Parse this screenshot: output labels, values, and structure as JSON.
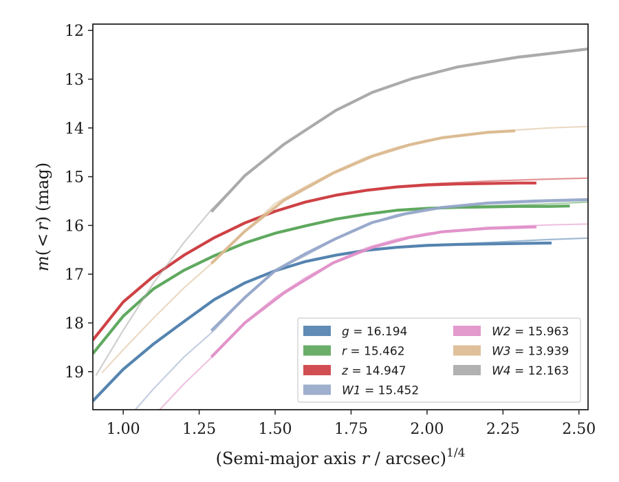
{
  "chart_data": {
    "type": "line",
    "xlabel": {
      "prefix": "(Semi-major axis ",
      "italic": "r",
      "suffix": " / arcsec)",
      "superscript": "1/4"
    },
    "ylabel": {
      "italic_m": "m",
      "open": "(",
      "lt": "<",
      "italic_r": "r",
      "close": ")",
      "unit": "(mag)"
    },
    "xlim": [
      0.9,
      2.53
    ],
    "ylim": [
      19.78,
      11.87
    ],
    "y_inverted": true,
    "xticks": [
      1.0,
      1.25,
      1.5,
      1.75,
      2.0,
      2.25,
      2.5
    ],
    "xtick_labels": [
      "1.00",
      "1.25",
      "1.50",
      "1.75",
      "2.00",
      "2.25",
      "2.50"
    ],
    "yticks": [
      12,
      13,
      14,
      15,
      16,
      17,
      18,
      19
    ],
    "ytick_labels": [
      "12",
      "13",
      "14",
      "15",
      "16",
      "17",
      "18",
      "19"
    ],
    "grid": false,
    "legend_position": "lower-right",
    "series": [
      {
        "band": "g",
        "value": "16.194",
        "color": "#4f7fad",
        "model_x": [
          0.9,
          1.0,
          1.1,
          1.2,
          1.3,
          1.4,
          1.5,
          1.6,
          1.7,
          1.8,
          1.9,
          2.0,
          2.2,
          2.4,
          2.53
        ],
        "model_y": [
          19.62,
          18.97,
          18.45,
          17.98,
          17.52,
          17.17,
          16.93,
          16.75,
          16.62,
          16.52,
          16.45,
          16.41,
          16.35,
          16.29,
          16.26
        ],
        "data_x": [
          0.9,
          1.0,
          1.1,
          1.2,
          1.3,
          1.4,
          1.5,
          1.6,
          1.7,
          1.8,
          1.9,
          2.0,
          2.1,
          2.2,
          2.3,
          2.41
        ],
        "data_y": [
          19.6,
          18.95,
          18.43,
          17.97,
          17.52,
          17.18,
          16.93,
          16.74,
          16.61,
          16.51,
          16.45,
          16.41,
          16.39,
          16.38,
          16.37,
          16.36
        ]
      },
      {
        "band": "r",
        "value": "15.462",
        "color": "#5aa55a",
        "model_x": [
          0.9,
          1.0,
          1.1,
          1.2,
          1.3,
          1.4,
          1.5,
          1.6,
          1.7,
          1.8,
          1.9,
          2.0,
          2.2,
          2.4,
          2.53
        ],
        "model_y": [
          18.63,
          17.88,
          17.3,
          16.93,
          16.63,
          16.36,
          16.17,
          16.01,
          15.86,
          15.76,
          15.69,
          15.64,
          15.6,
          15.56,
          15.52
        ],
        "data_x": [
          0.9,
          1.0,
          1.1,
          1.2,
          1.3,
          1.4,
          1.5,
          1.6,
          1.7,
          1.8,
          1.9,
          2.0,
          2.1,
          2.2,
          2.3,
          2.4,
          2.47
        ],
        "data_y": [
          18.63,
          17.86,
          17.3,
          16.92,
          16.62,
          16.36,
          16.16,
          16.01,
          15.87,
          15.77,
          15.69,
          15.65,
          15.63,
          15.62,
          15.61,
          15.61,
          15.6
        ]
      },
      {
        "band": "z",
        "value": "14.947",
        "color": "#cc3b3f",
        "model_x": [
          0.9,
          1.0,
          1.1,
          1.2,
          1.3,
          1.4,
          1.5,
          1.6,
          1.7,
          1.8,
          1.9,
          2.0,
          2.2,
          2.4,
          2.53
        ],
        "model_y": [
          18.35,
          17.58,
          17.05,
          16.62,
          16.25,
          15.95,
          15.7,
          15.52,
          15.38,
          15.28,
          15.2,
          15.15,
          15.09,
          15.05,
          15.03
        ],
        "data_x": [
          0.9,
          1.0,
          1.1,
          1.2,
          1.3,
          1.4,
          1.5,
          1.6,
          1.7,
          1.8,
          1.9,
          2.0,
          2.1,
          2.2,
          2.3,
          2.36
        ],
        "data_y": [
          18.35,
          17.57,
          17.04,
          16.61,
          16.25,
          15.95,
          15.71,
          15.52,
          15.38,
          15.28,
          15.21,
          15.17,
          15.15,
          15.14,
          15.13,
          15.13
        ]
      },
      {
        "band": "W1",
        "value": "15.452",
        "color": "#95a6c9",
        "model_x": [
          1.04,
          1.1,
          1.2,
          1.3,
          1.4,
          1.5,
          1.6,
          1.7,
          1.8,
          1.9,
          2.0,
          2.2,
          2.4,
          2.53
        ],
        "model_y": [
          19.78,
          19.35,
          18.7,
          18.15,
          17.48,
          16.93,
          16.62,
          16.28,
          15.98,
          15.78,
          15.66,
          15.56,
          15.51,
          15.48
        ],
        "data_x": [
          1.29,
          1.4,
          1.5,
          1.6,
          1.7,
          1.82,
          1.93,
          2.05,
          2.2,
          2.35,
          2.53
        ],
        "data_y": [
          18.16,
          17.48,
          16.93,
          16.58,
          16.27,
          15.94,
          15.76,
          15.63,
          15.54,
          15.5,
          15.47
        ]
      },
      {
        "band": "W2",
        "value": "15.963",
        "color": "#e08fc8",
        "model_x": [
          1.12,
          1.2,
          1.3,
          1.4,
          1.5,
          1.6,
          1.7,
          1.8,
          1.9,
          2.0,
          2.2,
          2.4,
          2.53
        ],
        "model_y": [
          19.78,
          19.25,
          18.65,
          17.98,
          17.48,
          17.07,
          16.73,
          16.46,
          16.28,
          16.16,
          16.04,
          15.99,
          15.97
        ],
        "data_x": [
          1.29,
          1.4,
          1.53,
          1.69,
          1.82,
          1.94,
          2.05,
          2.2,
          2.36
        ],
        "data_y": [
          18.7,
          18.0,
          17.38,
          16.77,
          16.45,
          16.25,
          16.13,
          16.06,
          16.03
        ]
      },
      {
        "band": "W3",
        "value": "13.939",
        "color": "#dbb98f",
        "model_x": [
          0.93,
          1.0,
          1.1,
          1.2,
          1.3,
          1.4,
          1.5,
          1.6,
          1.7,
          1.8,
          1.9,
          2.0,
          2.2,
          2.4,
          2.53
        ],
        "model_y": [
          19.02,
          18.55,
          17.9,
          17.28,
          16.73,
          16.12,
          15.55,
          15.2,
          14.88,
          14.6,
          14.4,
          14.25,
          14.08,
          14.0,
          13.97
        ],
        "data_x": [
          1.29,
          1.4,
          1.53,
          1.69,
          1.82,
          1.94,
          2.05,
          2.2,
          2.29
        ],
        "data_y": [
          16.78,
          16.12,
          15.48,
          14.93,
          14.58,
          14.35,
          14.2,
          14.09,
          14.06
        ]
      },
      {
        "band": "W4",
        "value": "12.163",
        "color": "#a8a8a8",
        "model_x": [
          0.91,
          1.0,
          1.1,
          1.2,
          1.29,
          1.4,
          1.53,
          1.7,
          1.82,
          1.95,
          2.1,
          2.3,
          2.53
        ],
        "model_y": [
          19.08,
          18.15,
          17.18,
          16.35,
          15.68,
          14.98,
          14.33,
          13.65,
          13.27,
          12.98,
          12.74,
          12.53,
          12.38
        ],
        "data_x": [
          1.29,
          1.4,
          1.53,
          1.7,
          1.82,
          1.95,
          2.1,
          2.3,
          2.53
        ],
        "data_y": [
          15.72,
          14.98,
          14.33,
          13.64,
          13.27,
          12.99,
          12.75,
          12.55,
          12.38
        ]
      }
    ]
  }
}
